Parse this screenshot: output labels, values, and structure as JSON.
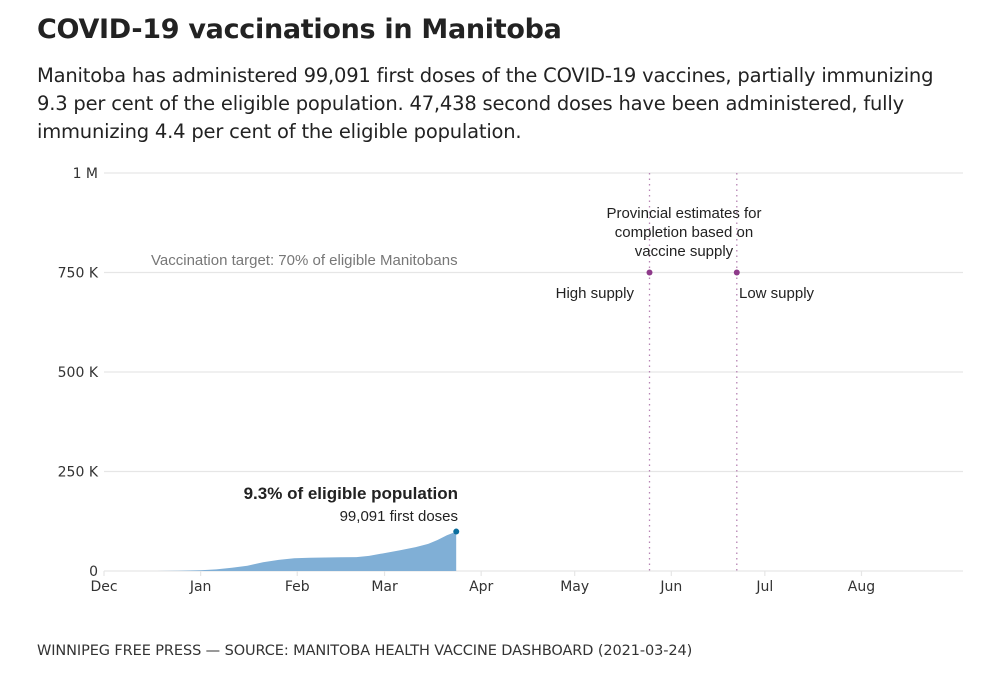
{
  "header": {
    "title": "COVID-19 vaccinations in Manitoba",
    "subtitle": "Manitoba has administered 99,091 first doses of the COVID-19 vaccines, partially immunizing 9.3 per cent of the eligible population. 47,438 second doses have been administered, fully immunizing 4.4 per cent of the eligible population."
  },
  "footer": {
    "credit": "WINNIPEG FREE PRESS — SOURCE: MANITOBA HEALTH VACCINE DASHBOARD (2021-03-24)"
  },
  "colors": {
    "area": "#80afd6",
    "endpoint": "#0b6e9e",
    "estimate": "#8e3a8a",
    "grid": "#e6e6e6",
    "target_text": "#777777"
  },
  "chart_data": {
    "type": "area",
    "title": "COVID-19 vaccinations in Manitoba",
    "xlabel": "",
    "ylabel": "",
    "x_domain": [
      "2020-12-01",
      "2021-08-31"
    ],
    "ylim": [
      0,
      1000000
    ],
    "grid": true,
    "y_ticks": [
      {
        "value": 0,
        "label": "0"
      },
      {
        "value": 250000,
        "label": "250 K"
      },
      {
        "value": 500000,
        "label": "500 K"
      },
      {
        "value": 750000,
        "label": "750 K"
      },
      {
        "value": 1000000,
        "label": "1 M"
      }
    ],
    "x_ticks": [
      {
        "date": "2020-12-01",
        "label": "Dec"
      },
      {
        "date": "2021-01-01",
        "label": "Jan"
      },
      {
        "date": "2021-02-01",
        "label": "Feb"
      },
      {
        "date": "2021-03-01",
        "label": "Mar"
      },
      {
        "date": "2021-04-01",
        "label": "Apr"
      },
      {
        "date": "2021-05-01",
        "label": "May"
      },
      {
        "date": "2021-06-01",
        "label": "Jun"
      },
      {
        "date": "2021-07-01",
        "label": "Jul"
      },
      {
        "date": "2021-08-01",
        "label": "Aug"
      }
    ],
    "series": [
      {
        "name": "First doses",
        "points": [
          {
            "date": "2020-12-18",
            "value": 0
          },
          {
            "date": "2020-12-25",
            "value": 800
          },
          {
            "date": "2021-01-01",
            "value": 2000
          },
          {
            "date": "2021-01-06",
            "value": 4000
          },
          {
            "date": "2021-01-11",
            "value": 8000
          },
          {
            "date": "2021-01-16",
            "value": 13000
          },
          {
            "date": "2021-01-21",
            "value": 22000
          },
          {
            "date": "2021-01-26",
            "value": 28000
          },
          {
            "date": "2021-01-31",
            "value": 32000
          },
          {
            "date": "2021-02-05",
            "value": 33500
          },
          {
            "date": "2021-02-10",
            "value": 34000
          },
          {
            "date": "2021-02-15",
            "value": 34500
          },
          {
            "date": "2021-02-20",
            "value": 35000
          },
          {
            "date": "2021-02-24",
            "value": 38000
          },
          {
            "date": "2021-03-01",
            "value": 45000
          },
          {
            "date": "2021-03-06",
            "value": 52000
          },
          {
            "date": "2021-03-11",
            "value": 60000
          },
          {
            "date": "2021-03-15",
            "value": 68000
          },
          {
            "date": "2021-03-18",
            "value": 78000
          },
          {
            "date": "2021-03-21",
            "value": 90000
          },
          {
            "date": "2021-03-24",
            "value": 99091
          }
        ]
      }
    ],
    "target": {
      "value": 750000,
      "label": "Vaccination target: 70% of eligible Manitobans"
    },
    "estimates": {
      "label_lines": [
        "Provincial estimates for",
        "completion based on",
        "vaccine supply"
      ],
      "markers": [
        {
          "date": "2021-05-25",
          "value": 750000,
          "label": "High supply"
        },
        {
          "date": "2021-06-22",
          "value": 750000,
          "label": "Low supply"
        }
      ]
    },
    "endpoint_annotation": {
      "headline": "9.3% of eligible population",
      "detail": "99,091 first doses"
    }
  }
}
